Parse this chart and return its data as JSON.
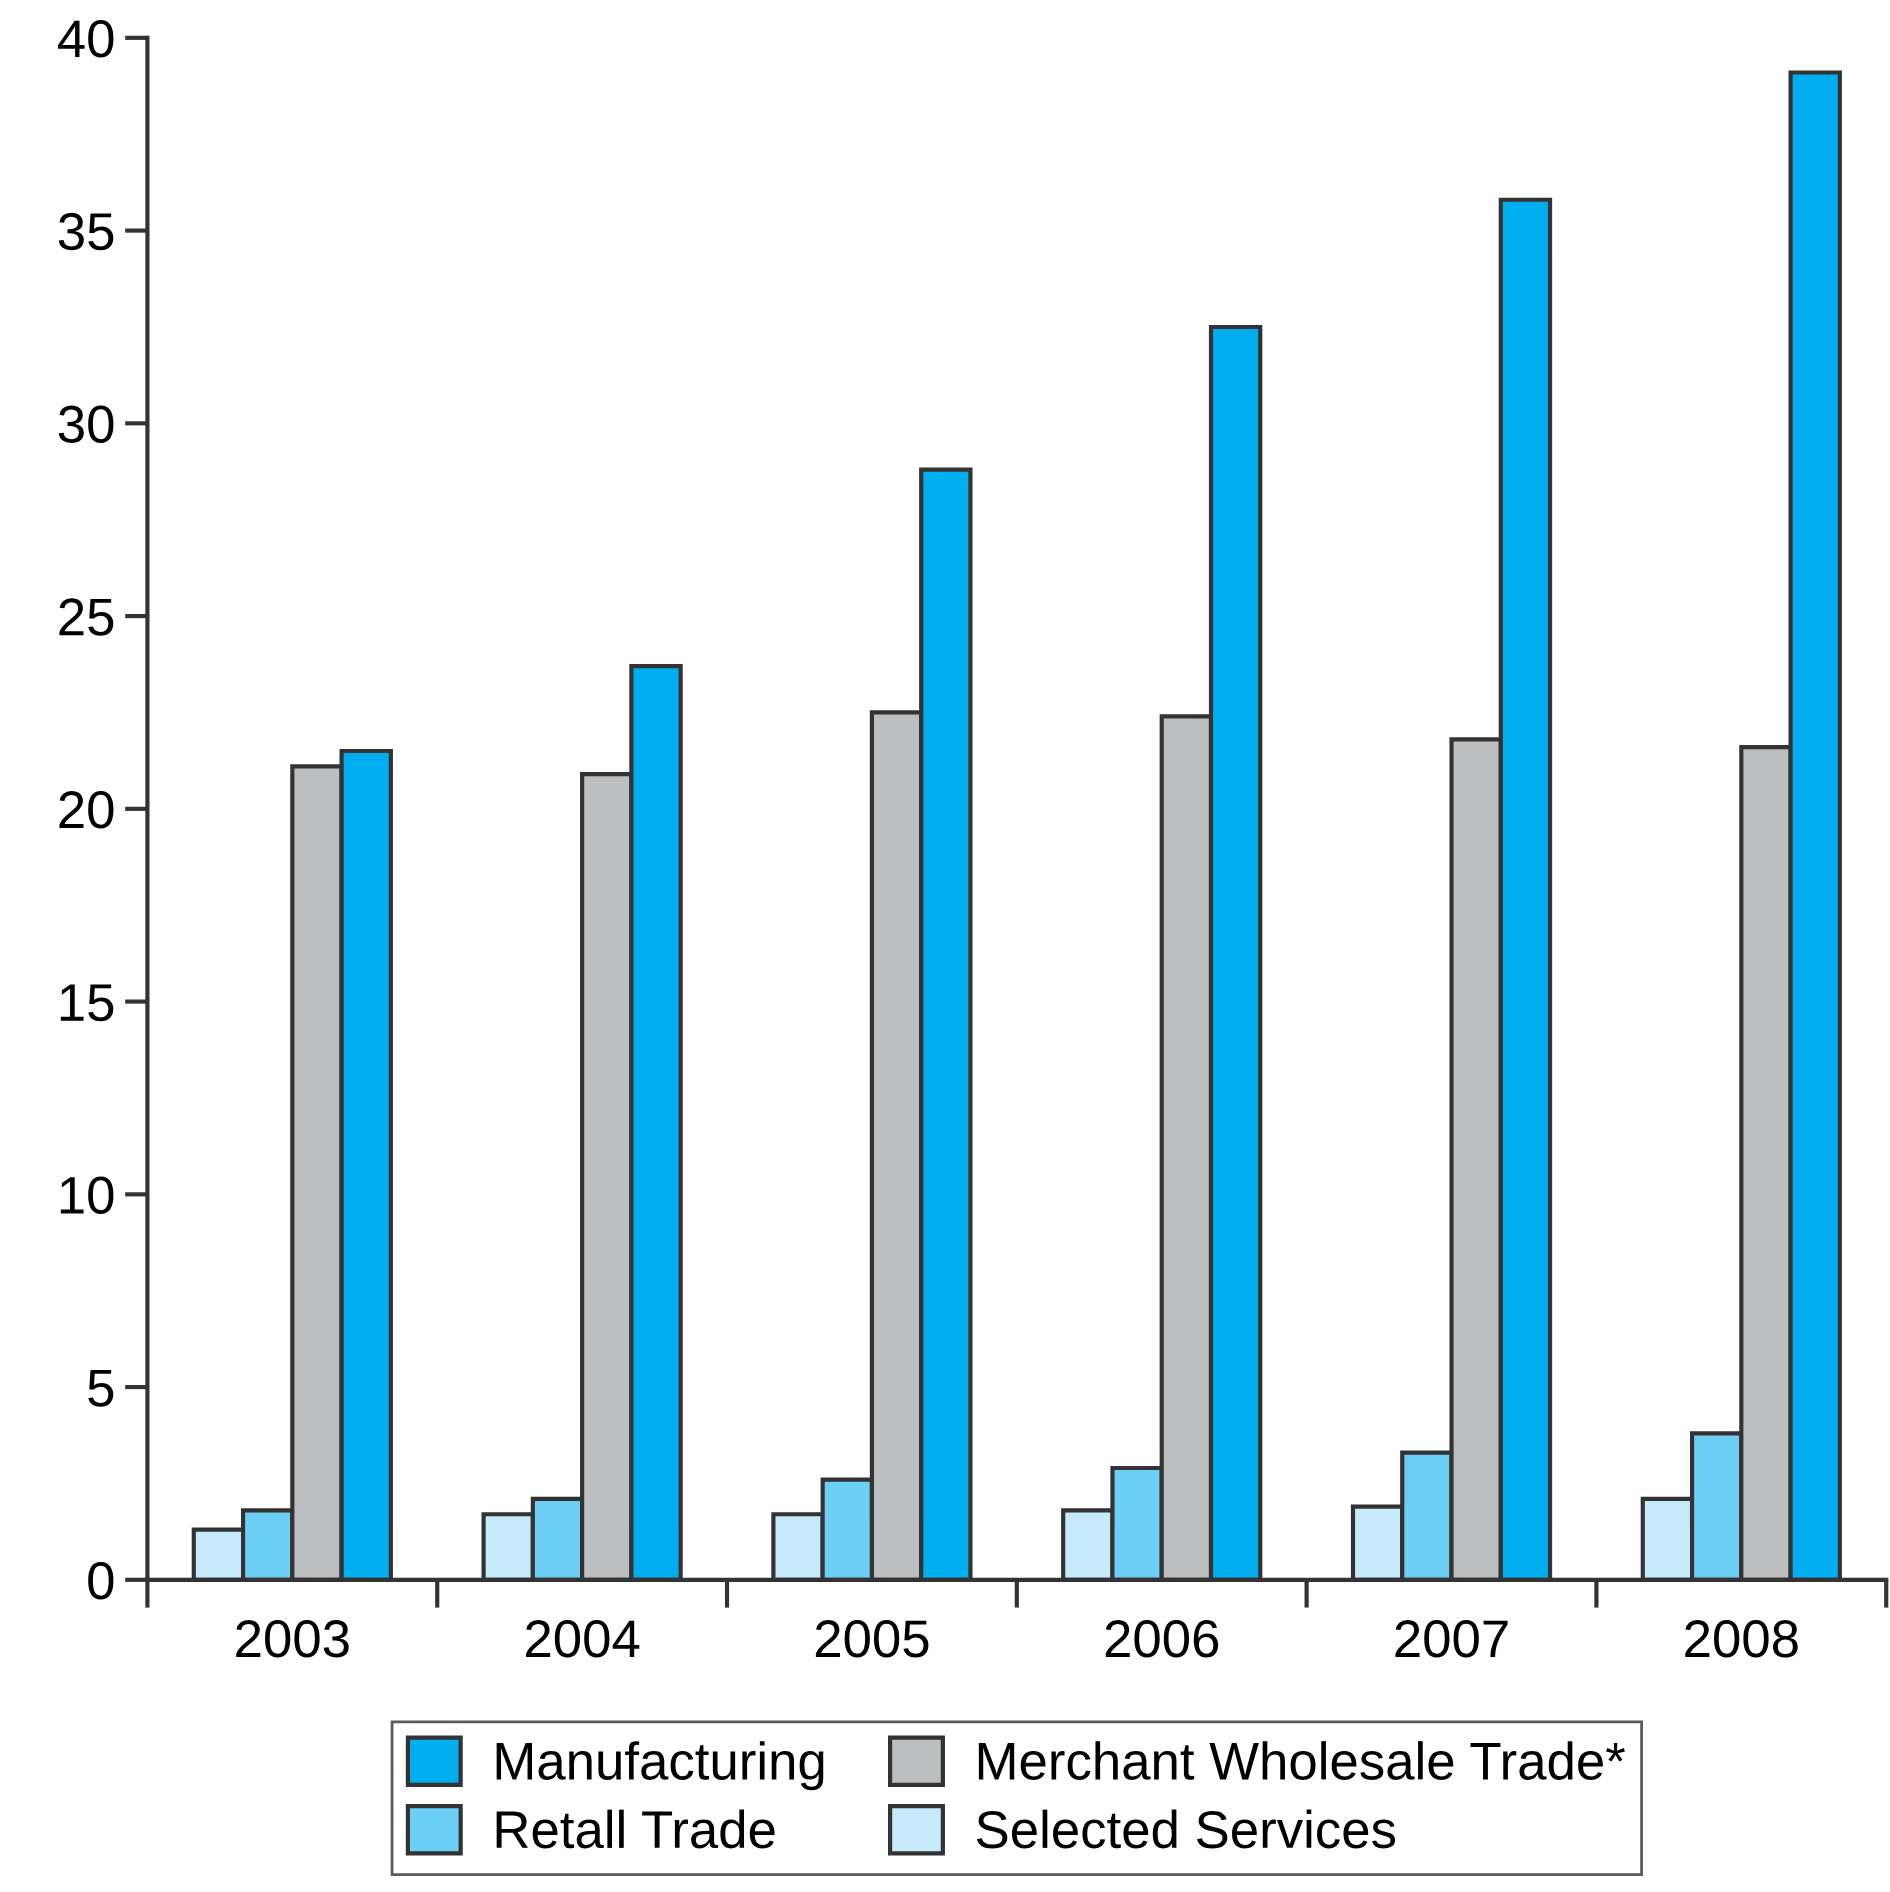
{
  "chart_data": {
    "type": "bar",
    "categories": [
      "2003",
      "2004",
      "2005",
      "2006",
      "2007",
      "2008"
    ],
    "series": [
      {
        "name": "Selected Services",
        "color": "#c7eafb",
        "values": [
          1.3,
          1.7,
          1.7,
          1.8,
          1.9,
          2.1
        ]
      },
      {
        "name": "Retall Trade",
        "color": "#6dcff6",
        "values": [
          1.8,
          2.1,
          2.6,
          2.9,
          3.3,
          3.8
        ]
      },
      {
        "name": "Merchant Wholesale Trade*",
        "color": "#bcbec0",
        "values": [
          21.1,
          20.9,
          22.5,
          22.4,
          21.8,
          21.6
        ]
      },
      {
        "name": "Manufacturing",
        "color": "#00aeef",
        "values": [
          21.5,
          23.7,
          28.8,
          32.5,
          35.8,
          39.1
        ]
      }
    ],
    "ylim": [
      0,
      40
    ],
    "yticks": [
      0,
      5,
      10,
      15,
      20,
      25,
      30,
      35,
      40
    ],
    "grid": false,
    "legend": "bottom"
  }
}
